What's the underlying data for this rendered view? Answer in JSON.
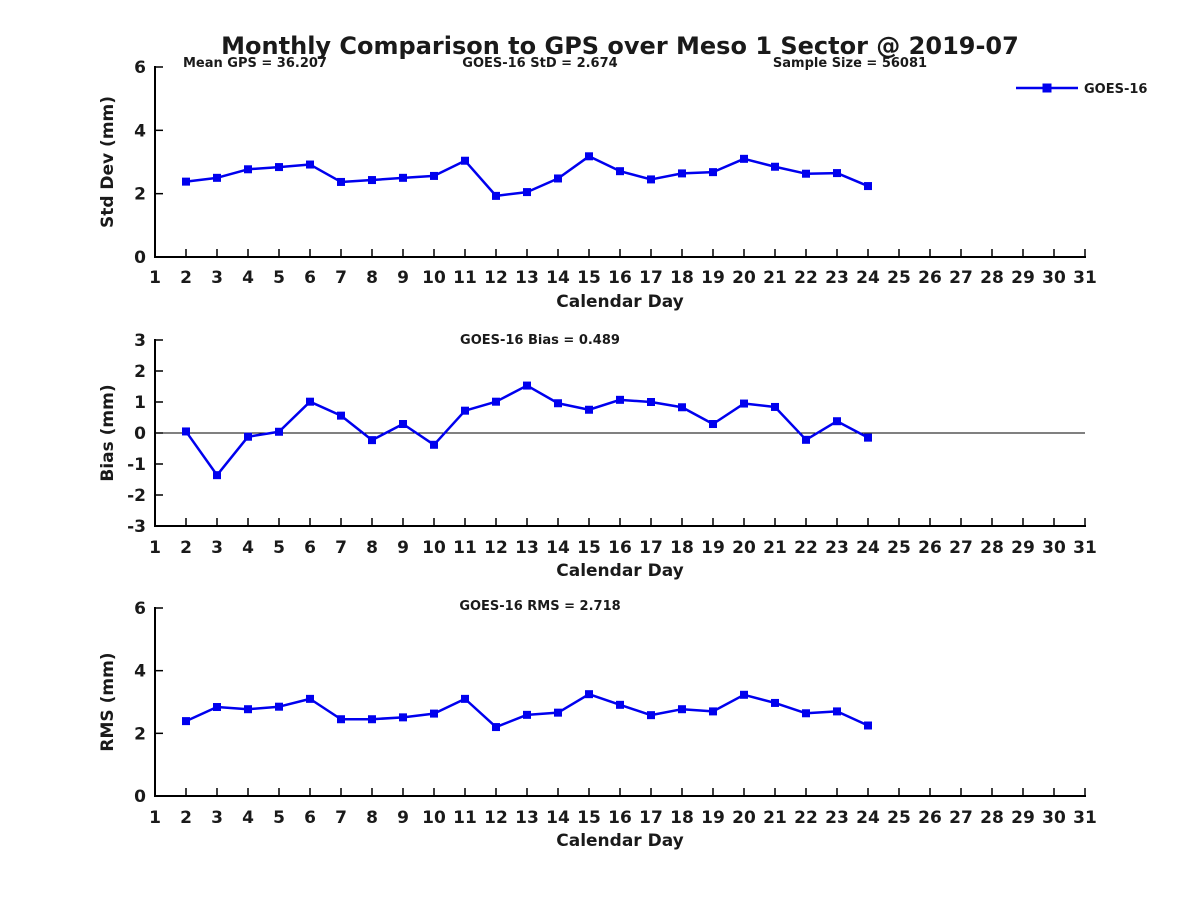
{
  "title": "Monthly Comparison to GPS over Meso 1 Sector @ 2019-07",
  "legend": {
    "label": "GOES-16"
  },
  "colors": {
    "series": "#0000ee",
    "axis": "#000000",
    "text": "#1a1a1a"
  },
  "chart_data": [
    {
      "type": "line",
      "name": "std-dev",
      "annotations": [
        "Mean GPS = 36.207",
        "GOES-16 StD = 2.674",
        "Sample Size = 56081"
      ],
      "xlabel": "Calendar Day",
      "ylabel": "Std Dev (mm)",
      "xlim": [
        1,
        31
      ],
      "ylim": [
        0,
        6
      ],
      "xticks": [
        1,
        2,
        3,
        4,
        5,
        6,
        7,
        8,
        9,
        10,
        11,
        12,
        13,
        14,
        15,
        16,
        17,
        18,
        19,
        20,
        21,
        22,
        23,
        24,
        25,
        26,
        27,
        28,
        29,
        30,
        31
      ],
      "yticks": [
        0,
        2,
        4,
        6
      ],
      "legend_position": "top-right",
      "grid": false,
      "series": [
        {
          "name": "GOES-16",
          "color": "#0000ee",
          "x": [
            2,
            3,
            4,
            5,
            6,
            7,
            8,
            9,
            10,
            11,
            12,
            13,
            14,
            15,
            16,
            17,
            18,
            19,
            20,
            21,
            22,
            23,
            24
          ],
          "y": [
            2.38,
            2.5,
            2.77,
            2.84,
            2.92,
            2.37,
            2.43,
            2.5,
            2.56,
            3.04,
            1.93,
            2.05,
            2.48,
            3.18,
            2.71,
            2.45,
            2.64,
            2.68,
            3.1,
            2.85,
            2.63,
            2.65,
            2.24
          ]
        }
      ]
    },
    {
      "type": "line",
      "name": "bias",
      "annotations": [
        "GOES-16 Bias = 0.489"
      ],
      "xlabel": "Calendar Day",
      "ylabel": "Bias (mm)",
      "xlim": [
        1,
        31
      ],
      "ylim": [
        -3,
        3
      ],
      "xticks": [
        1,
        2,
        3,
        4,
        5,
        6,
        7,
        8,
        9,
        10,
        11,
        12,
        13,
        14,
        15,
        16,
        17,
        18,
        19,
        20,
        21,
        22,
        23,
        24,
        25,
        26,
        27,
        28,
        29,
        30,
        31
      ],
      "yticks": [
        -3,
        -2,
        -1,
        0,
        1,
        2,
        3
      ],
      "zero_line": true,
      "grid": false,
      "series": [
        {
          "name": "GOES-16",
          "color": "#0000ee",
          "x": [
            2,
            3,
            4,
            5,
            6,
            7,
            8,
            9,
            10,
            11,
            12,
            13,
            14,
            15,
            16,
            17,
            18,
            19,
            20,
            21,
            22,
            23,
            24
          ],
          "y": [
            0.05,
            -1.36,
            -0.12,
            0.04,
            1.01,
            0.56,
            -0.23,
            0.29,
            -0.38,
            0.72,
            1.01,
            1.53,
            0.96,
            0.75,
            1.07,
            1.0,
            0.83,
            0.29,
            0.95,
            0.84,
            -0.22,
            0.38,
            -0.15
          ]
        }
      ]
    },
    {
      "type": "line",
      "name": "rms",
      "annotations": [
        "GOES-16 RMS = 2.718"
      ],
      "xlabel": "Calendar Day",
      "ylabel": "RMS (mm)",
      "xlim": [
        1,
        31
      ],
      "ylim": [
        0,
        6
      ],
      "xticks": [
        1,
        2,
        3,
        4,
        5,
        6,
        7,
        8,
        9,
        10,
        11,
        12,
        13,
        14,
        15,
        16,
        17,
        18,
        19,
        20,
        21,
        22,
        23,
        24,
        25,
        26,
        27,
        28,
        29,
        30,
        31
      ],
      "yticks": [
        0,
        2,
        4,
        6
      ],
      "zero_line": false,
      "grid": false,
      "series": [
        {
          "name": "GOES-16",
          "color": "#0000ee",
          "x": [
            2,
            3,
            4,
            5,
            6,
            7,
            8,
            9,
            10,
            11,
            12,
            13,
            14,
            15,
            16,
            17,
            18,
            19,
            20,
            21,
            22,
            23,
            24
          ],
          "y": [
            2.39,
            2.84,
            2.77,
            2.85,
            3.1,
            2.45,
            2.45,
            2.51,
            2.63,
            3.1,
            2.2,
            2.59,
            2.66,
            3.25,
            2.91,
            2.58,
            2.77,
            2.7,
            3.23,
            2.97,
            2.64,
            2.7,
            2.25
          ]
        }
      ]
    }
  ]
}
